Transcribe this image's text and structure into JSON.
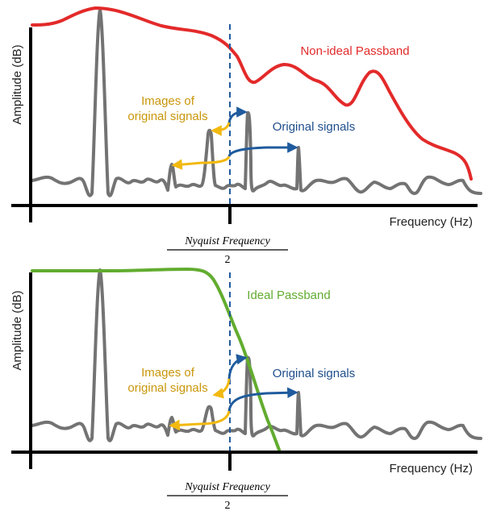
{
  "colors": {
    "axis": "#000000",
    "signal": "#737373",
    "non_ideal_passband": "#e32a2a",
    "ideal_passband": "#62ac2f",
    "images_arrow": "#f2b90f",
    "original_arrow": "#1f5b9d",
    "nyquist_line": "#1f5b9d",
    "images_text": "#c9960a",
    "original_text": "#1f4e8c"
  },
  "panels": [
    {
      "id": "top",
      "ylabel": "Amplitude (dB)",
      "xlabel": "Frequency (Hz)",
      "passband_label": "Non-ideal Passband",
      "images_label_line1": "Images of",
      "images_label_line2": "original signals",
      "original_label": "Original signals",
      "nyquist_numerator": "Nyquist Frequency",
      "nyquist_denominator": "2"
    },
    {
      "id": "bottom",
      "ylabel": "Amplitude (dB)",
      "xlabel": "Frequency (Hz)",
      "passband_label": "Ideal Passband",
      "images_label_line1": "Images of",
      "images_label_line2": "original signals",
      "original_label": "Original signals",
      "nyquist_numerator": "Nyquist Frequency",
      "nyquist_denominator": "2"
    }
  ]
}
